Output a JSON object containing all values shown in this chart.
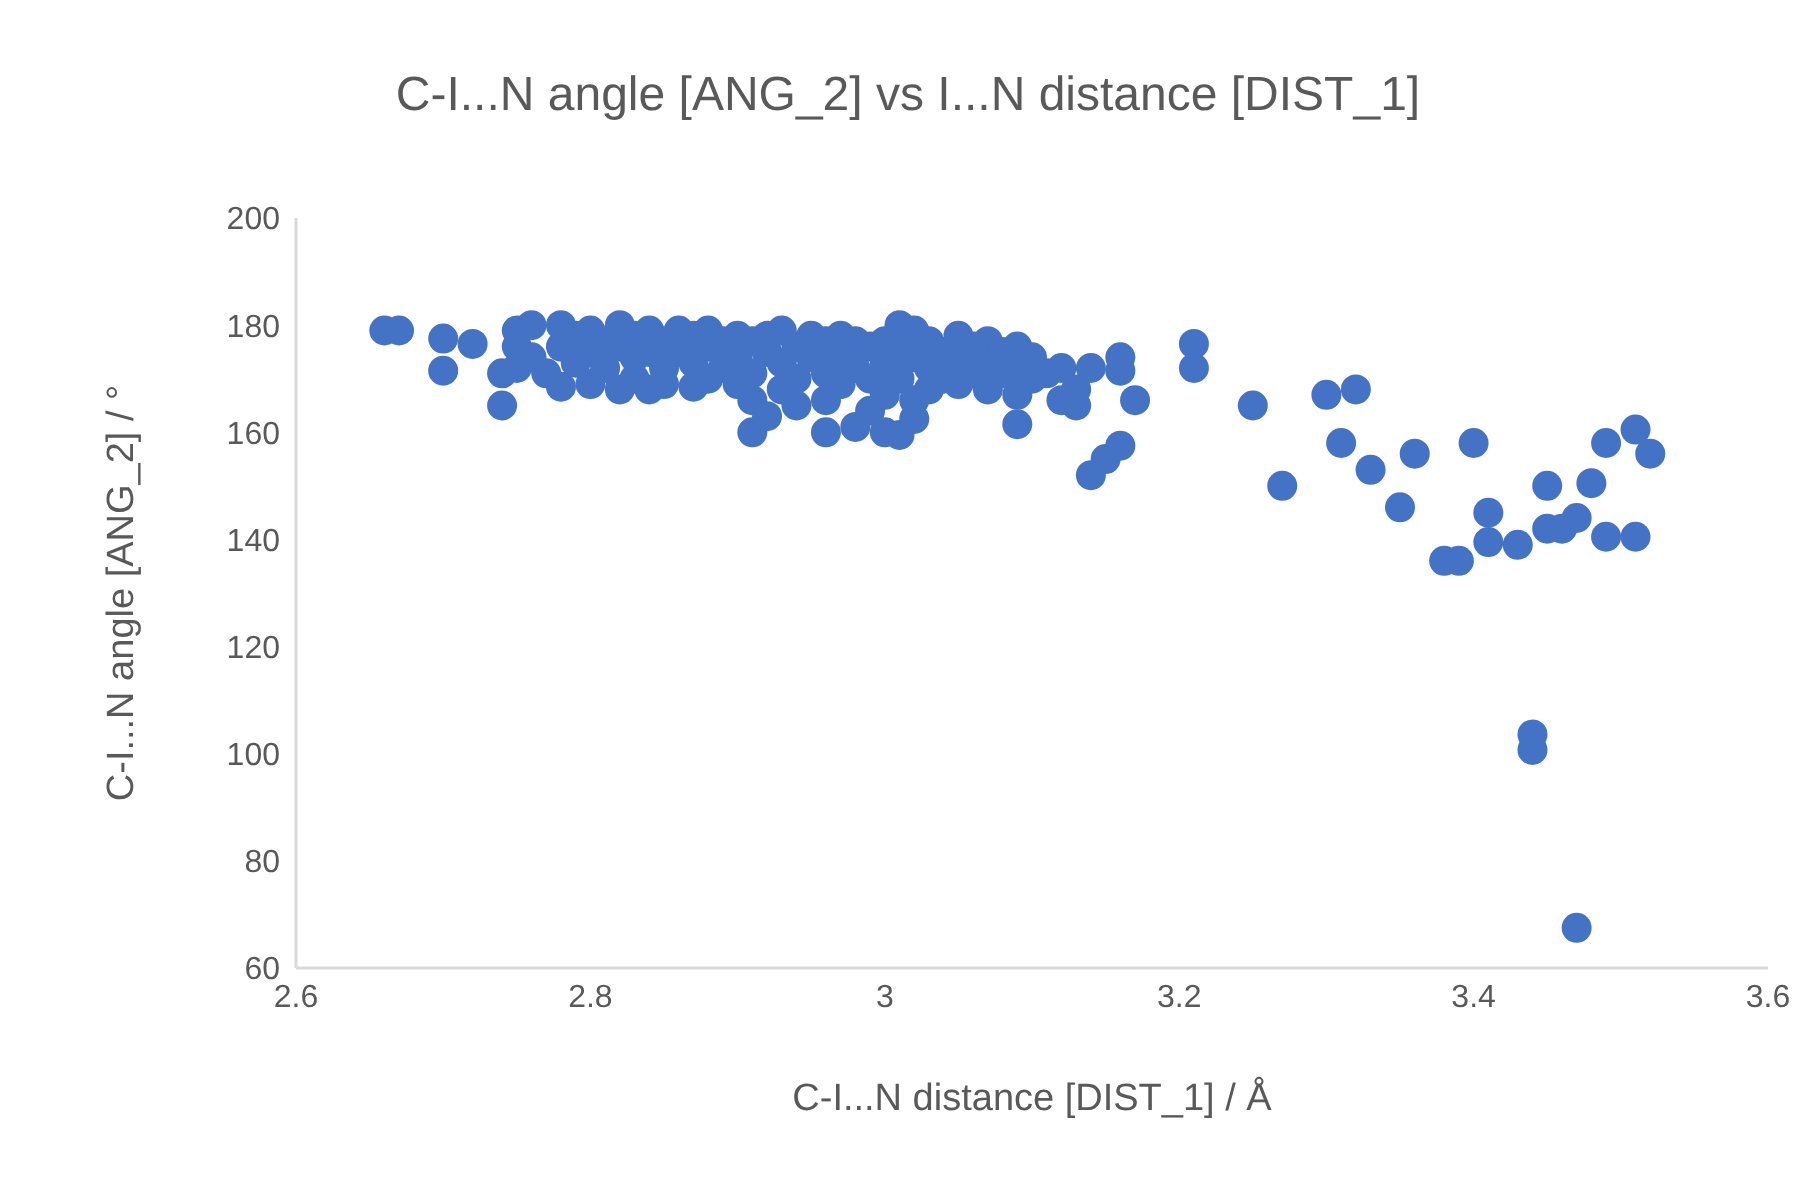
{
  "chart_data": {
    "type": "scatter",
    "title": "C-I...N angle [ANG_2] vs I...N distance [DIST_1]",
    "xlabel": "C-I...N distance [DIST_1] / Å",
    "ylabel": "C-I...N angle [ANG_2] / °",
    "xlim": [
      2.6,
      3.6
    ],
    "xticks": [
      2.6,
      2.8,
      3,
      3.2,
      3.4,
      3.6
    ],
    "ylim": [
      60,
      200
    ],
    "yticks": [
      60,
      80,
      100,
      120,
      140,
      160,
      180,
      200
    ],
    "grid": false,
    "marker": "circle",
    "color": "#4472c4",
    "x": [
      2.66,
      2.67,
      2.7,
      2.7,
      2.72,
      2.74,
      2.74,
      2.75,
      2.75,
      2.75,
      2.76,
      2.76,
      2.77,
      2.78,
      2.78,
      2.78,
      2.79,
      2.79,
      2.8,
      2.8,
      2.8,
      2.81,
      2.81,
      2.82,
      2.82,
      2.82,
      2.83,
      2.83,
      2.83,
      2.84,
      2.84,
      2.84,
      2.85,
      2.85,
      2.85,
      2.86,
      2.86,
      2.87,
      2.87,
      2.87,
      2.88,
      2.88,
      2.88,
      2.89,
      2.89,
      2.9,
      2.9,
      2.9,
      2.91,
      2.91,
      2.91,
      2.91,
      2.92,
      2.92,
      2.92,
      2.93,
      2.93,
      2.93,
      2.94,
      2.94,
      2.94,
      2.95,
      2.95,
      2.96,
      2.96,
      2.96,
      2.96,
      2.97,
      2.97,
      2.97,
      2.98,
      2.98,
      2.98,
      2.99,
      2.99,
      2.99,
      3,
      3,
      3,
      3,
      3.01,
      3.01,
      3.01,
      3.01,
      3.02,
      3.02,
      3.02,
      3.02,
      3.03,
      3.03,
      3.03,
      3.04,
      3.04,
      3.05,
      3.05,
      3.05,
      3.06,
      3.06,
      3.07,
      3.07,
      3.07,
      3.08,
      3.08,
      3.09,
      3.09,
      3.09,
      3.09,
      3.1,
      3.1,
      3.11,
      3.12,
      3.12,
      3.13,
      3.13,
      3.14,
      3.14,
      3.15,
      3.16,
      3.16,
      3.16,
      3.17,
      3.21,
      3.21,
      3.25,
      3.27,
      3.3,
      3.31,
      3.32,
      3.33,
      3.35,
      3.36,
      3.38,
      3.39,
      3.4,
      3.41,
      3.41,
      3.43,
      3.44,
      3.44,
      3.45,
      3.45,
      3.46,
      3.47,
      3.47,
      3.48,
      3.49,
      3.49,
      3.51,
      3.51,
      3.52
    ],
    "values": [
      179,
      179,
      177.5,
      171.5,
      176.5,
      165,
      171,
      179,
      176,
      172,
      180,
      174,
      171,
      180,
      176,
      168.5,
      178,
      173,
      179,
      175,
      169,
      177,
      172,
      180,
      176,
      168,
      178,
      174,
      170,
      179,
      175,
      168,
      177,
      172,
      169,
      179,
      175,
      178,
      173,
      168.5,
      179,
      176,
      170,
      177,
      172,
      178,
      174,
      169,
      177,
      171,
      166,
      160,
      178,
      175,
      163,
      179,
      173,
      168,
      176,
      170,
      165,
      178,
      174,
      177,
      171,
      166,
      160,
      178,
      174,
      169,
      177,
      172,
      161,
      176,
      170,
      164,
      177,
      173,
      167,
      160,
      180,
      175,
      170,
      159.5,
      179,
      174,
      166,
      162.5,
      177,
      172,
      168,
      175,
      170,
      178,
      174,
      169,
      176,
      171,
      177,
      173,
      168,
      175,
      171,
      176,
      172,
      167,
      161.5,
      174,
      170,
      171,
      166,
      172,
      168,
      165,
      172,
      152,
      155,
      174,
      171.5,
      157.5,
      166,
      176.5,
      172,
      165,
      150,
      167,
      158,
      168,
      153,
      146,
      156,
      136,
      136,
      158,
      145,
      139.5,
      139,
      103.6,
      100.7,
      150,
      142,
      142,
      144,
      67.5,
      150.5,
      158,
      140.5,
      160.5,
      140.5,
      156
    ]
  }
}
